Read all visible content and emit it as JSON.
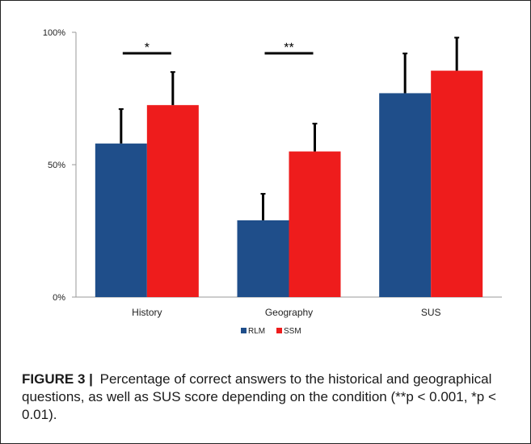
{
  "chart_data": {
    "type": "bar",
    "categories": [
      "History",
      "Geography",
      "SUS"
    ],
    "series": [
      {
        "name": "RLM",
        "color": "#1f4e8a",
        "values": [
          58,
          29,
          77
        ],
        "errors": [
          13,
          10,
          15
        ]
      },
      {
        "name": "SSM",
        "color": "#ee1c1c",
        "values": [
          72.5,
          55,
          85.5
        ],
        "errors": [
          12.5,
          10.5,
          12.5
        ]
      }
    ],
    "ylim": [
      0,
      100
    ],
    "yticks": [
      0,
      50,
      100
    ],
    "ytick_labels": [
      "0%",
      "50%",
      "100%"
    ],
    "legend_placement": "bottom",
    "grid": false,
    "significance": [
      {
        "category": "History",
        "label": "*"
      },
      {
        "category": "Geography",
        "label": "**"
      }
    ]
  },
  "caption": {
    "figure_label": "FIGURE 3",
    "separator": "|",
    "text": "Percentage of correct answers to the historical and geographical questions, as well as SUS score depending on the condition (**p < 0.001, *p < 0.01)."
  }
}
